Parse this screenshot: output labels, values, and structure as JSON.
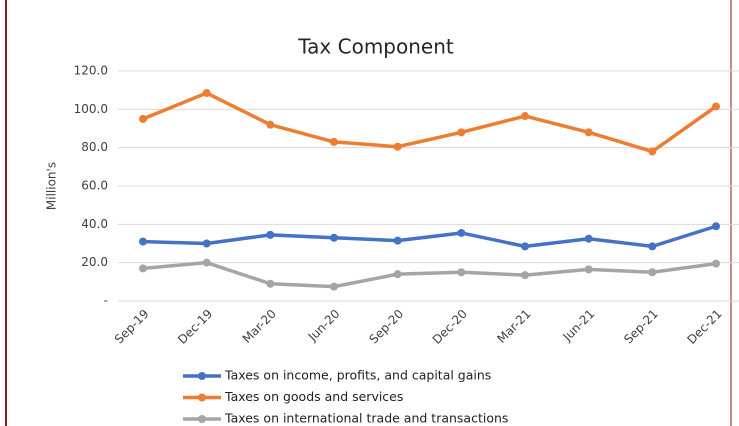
{
  "chart_data": {
    "type": "line",
    "title": "Tax Component",
    "y_label": "Million's",
    "categories": [
      "Sep-19",
      "Dec-19",
      "Mar-20",
      "Jun-20",
      "Sep-20",
      "Dec-20",
      "Mar-21",
      "Jun-21",
      "Sep-21",
      "Dec-21"
    ],
    "series": [
      {
        "name": "Taxes on income, profits, and capital gains",
        "color": "#4472c4",
        "values": [
          31,
          30,
          34.5,
          33,
          31.5,
          35.5,
          28.5,
          32.5,
          28.5,
          39
        ]
      },
      {
        "name": "Taxes on goods and services",
        "color": "#ed7d31",
        "values": [
          95,
          108.5,
          92,
          83,
          80.5,
          88,
          96.5,
          88,
          78,
          101.5
        ]
      },
      {
        "name": "Taxes on international trade and transactions",
        "color": "#a5a5a5",
        "values": [
          17,
          20,
          9,
          7.5,
          14,
          15,
          13.5,
          16.5,
          15,
          19.5
        ]
      }
    ],
    "ylim": [
      0,
      120
    ],
    "yticks": [
      {
        "value": 0,
        "label": "-"
      },
      {
        "value": 20,
        "label": "20.0"
      },
      {
        "value": 40,
        "label": "40.0"
      },
      {
        "value": 60,
        "label": "60.0"
      },
      {
        "value": 80,
        "label": "80.0"
      },
      {
        "value": 100,
        "label": "100.0"
      },
      {
        "value": 120,
        "label": "120.0"
      }
    ],
    "grid": true,
    "legend": "bottom"
  }
}
